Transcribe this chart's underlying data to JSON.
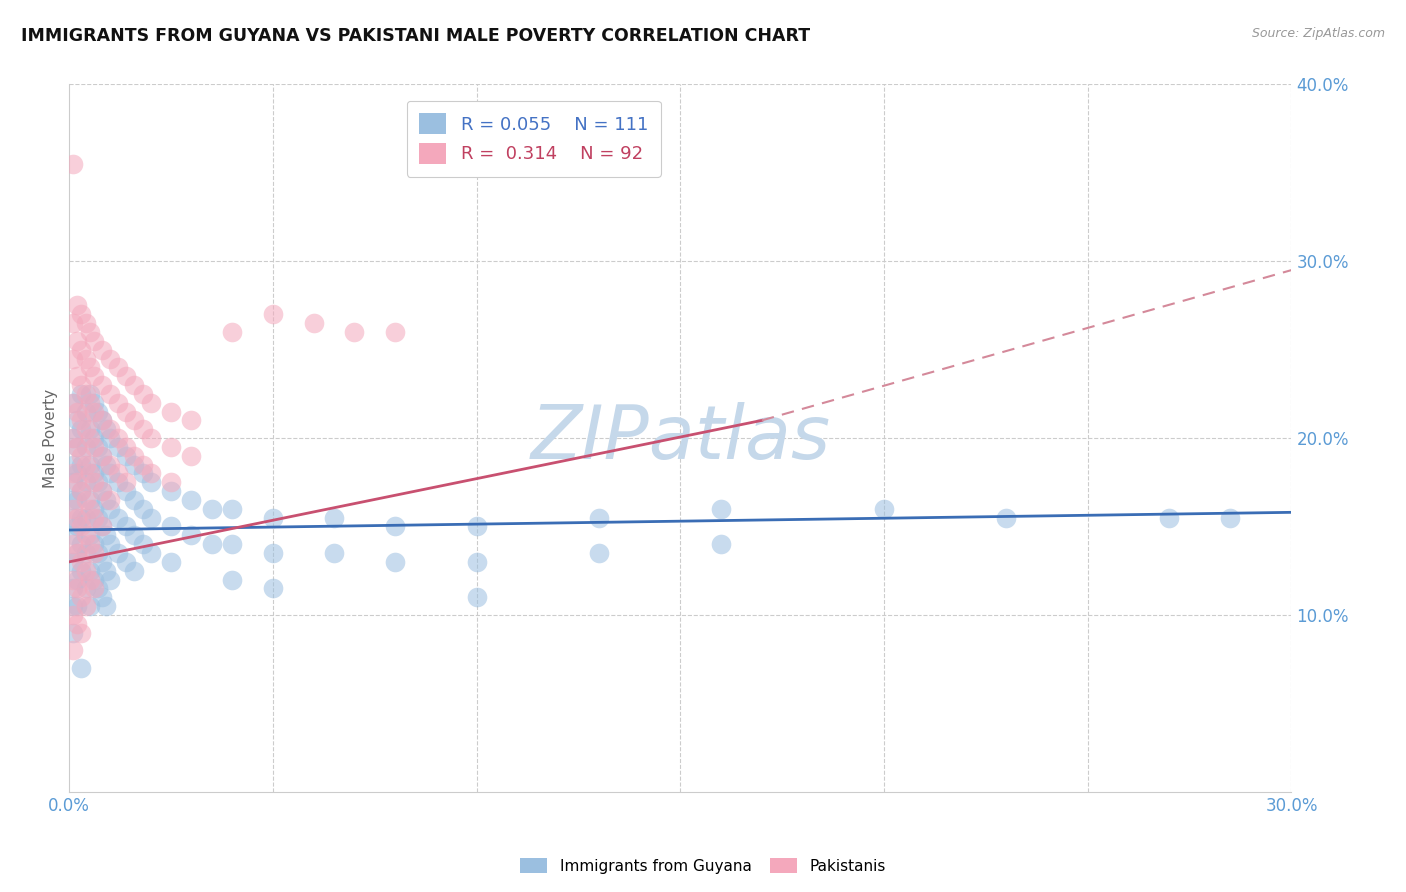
{
  "title": "IMMIGRANTS FROM GUYANA VS PAKISTANI MALE POVERTY CORRELATION CHART",
  "source": "Source: ZipAtlas.com",
  "ylabel": "Male Poverty",
  "xlim": [
    0.0,
    0.3
  ],
  "ylim": [
    0.0,
    0.4
  ],
  "blue_color": "#9BBFE0",
  "pink_color": "#F4A8BC",
  "blue_line_color": "#3A6DB5",
  "pink_line_color": "#C85070",
  "pink_line_dash_color": "#D4899A",
  "watermark": "ZIPatlas",
  "watermark_color": "#C5D8EA",
  "R_blue": 0.055,
  "N_blue": 111,
  "R_pink": 0.314,
  "N_pink": 92,
  "legend_label_blue": "Immigrants from Guyana",
  "legend_label_pink": "Pakistanis",
  "blue_scatter": [
    [
      0.001,
      0.22
    ],
    [
      0.001,
      0.2
    ],
    [
      0.001,
      0.185
    ],
    [
      0.001,
      0.175
    ],
    [
      0.001,
      0.165
    ],
    [
      0.001,
      0.155
    ],
    [
      0.001,
      0.145
    ],
    [
      0.001,
      0.13
    ],
    [
      0.001,
      0.115
    ],
    [
      0.001,
      0.105
    ],
    [
      0.001,
      0.09
    ],
    [
      0.002,
      0.21
    ],
    [
      0.002,
      0.195
    ],
    [
      0.002,
      0.18
    ],
    [
      0.002,
      0.165
    ],
    [
      0.002,
      0.15
    ],
    [
      0.002,
      0.135
    ],
    [
      0.002,
      0.12
    ],
    [
      0.002,
      0.105
    ],
    [
      0.003,
      0.225
    ],
    [
      0.003,
      0.205
    ],
    [
      0.003,
      0.185
    ],
    [
      0.003,
      0.17
    ],
    [
      0.003,
      0.155
    ],
    [
      0.003,
      0.14
    ],
    [
      0.003,
      0.125
    ],
    [
      0.003,
      0.07
    ],
    [
      0.004,
      0.215
    ],
    [
      0.004,
      0.195
    ],
    [
      0.004,
      0.175
    ],
    [
      0.004,
      0.155
    ],
    [
      0.004,
      0.135
    ],
    [
      0.004,
      0.115
    ],
    [
      0.005,
      0.225
    ],
    [
      0.005,
      0.205
    ],
    [
      0.005,
      0.185
    ],
    [
      0.005,
      0.165
    ],
    [
      0.005,
      0.145
    ],
    [
      0.005,
      0.125
    ],
    [
      0.005,
      0.105
    ],
    [
      0.006,
      0.22
    ],
    [
      0.006,
      0.2
    ],
    [
      0.006,
      0.18
    ],
    [
      0.006,
      0.16
    ],
    [
      0.006,
      0.14
    ],
    [
      0.006,
      0.12
    ],
    [
      0.007,
      0.215
    ],
    [
      0.007,
      0.195
    ],
    [
      0.007,
      0.175
    ],
    [
      0.007,
      0.155
    ],
    [
      0.007,
      0.135
    ],
    [
      0.007,
      0.115
    ],
    [
      0.008,
      0.21
    ],
    [
      0.008,
      0.19
    ],
    [
      0.008,
      0.17
    ],
    [
      0.008,
      0.15
    ],
    [
      0.008,
      0.13
    ],
    [
      0.008,
      0.11
    ],
    [
      0.009,
      0.205
    ],
    [
      0.009,
      0.185
    ],
    [
      0.009,
      0.165
    ],
    [
      0.009,
      0.145
    ],
    [
      0.009,
      0.125
    ],
    [
      0.009,
      0.105
    ],
    [
      0.01,
      0.2
    ],
    [
      0.01,
      0.18
    ],
    [
      0.01,
      0.16
    ],
    [
      0.01,
      0.14
    ],
    [
      0.01,
      0.12
    ],
    [
      0.012,
      0.195
    ],
    [
      0.012,
      0.175
    ],
    [
      0.012,
      0.155
    ],
    [
      0.012,
      0.135
    ],
    [
      0.014,
      0.19
    ],
    [
      0.014,
      0.17
    ],
    [
      0.014,
      0.15
    ],
    [
      0.014,
      0.13
    ],
    [
      0.016,
      0.185
    ],
    [
      0.016,
      0.165
    ],
    [
      0.016,
      0.145
    ],
    [
      0.016,
      0.125
    ],
    [
      0.018,
      0.18
    ],
    [
      0.018,
      0.16
    ],
    [
      0.018,
      0.14
    ],
    [
      0.02,
      0.175
    ],
    [
      0.02,
      0.155
    ],
    [
      0.02,
      0.135
    ],
    [
      0.025,
      0.17
    ],
    [
      0.025,
      0.15
    ],
    [
      0.025,
      0.13
    ],
    [
      0.03,
      0.165
    ],
    [
      0.03,
      0.145
    ],
    [
      0.035,
      0.16
    ],
    [
      0.035,
      0.14
    ],
    [
      0.04,
      0.16
    ],
    [
      0.04,
      0.14
    ],
    [
      0.04,
      0.12
    ],
    [
      0.05,
      0.155
    ],
    [
      0.05,
      0.135
    ],
    [
      0.05,
      0.115
    ],
    [
      0.065,
      0.155
    ],
    [
      0.065,
      0.135
    ],
    [
      0.08,
      0.15
    ],
    [
      0.08,
      0.13
    ],
    [
      0.1,
      0.15
    ],
    [
      0.1,
      0.13
    ],
    [
      0.1,
      0.11
    ],
    [
      0.13,
      0.155
    ],
    [
      0.13,
      0.135
    ],
    [
      0.16,
      0.16
    ],
    [
      0.16,
      0.14
    ],
    [
      0.2,
      0.16
    ],
    [
      0.23,
      0.155
    ],
    [
      0.27,
      0.155
    ],
    [
      0.285,
      0.155
    ]
  ],
  "pink_scatter": [
    [
      0.001,
      0.355
    ],
    [
      0.001,
      0.265
    ],
    [
      0.001,
      0.245
    ],
    [
      0.001,
      0.22
    ],
    [
      0.001,
      0.2
    ],
    [
      0.001,
      0.18
    ],
    [
      0.001,
      0.16
    ],
    [
      0.001,
      0.14
    ],
    [
      0.001,
      0.12
    ],
    [
      0.001,
      0.1
    ],
    [
      0.001,
      0.08
    ],
    [
      0.002,
      0.275
    ],
    [
      0.002,
      0.255
    ],
    [
      0.002,
      0.235
    ],
    [
      0.002,
      0.215
    ],
    [
      0.002,
      0.195
    ],
    [
      0.002,
      0.175
    ],
    [
      0.002,
      0.155
    ],
    [
      0.002,
      0.135
    ],
    [
      0.002,
      0.115
    ],
    [
      0.002,
      0.095
    ],
    [
      0.003,
      0.27
    ],
    [
      0.003,
      0.25
    ],
    [
      0.003,
      0.23
    ],
    [
      0.003,
      0.21
    ],
    [
      0.003,
      0.19
    ],
    [
      0.003,
      0.17
    ],
    [
      0.003,
      0.15
    ],
    [
      0.003,
      0.13
    ],
    [
      0.003,
      0.11
    ],
    [
      0.003,
      0.09
    ],
    [
      0.004,
      0.265
    ],
    [
      0.004,
      0.245
    ],
    [
      0.004,
      0.225
    ],
    [
      0.004,
      0.205
    ],
    [
      0.004,
      0.185
    ],
    [
      0.004,
      0.165
    ],
    [
      0.004,
      0.145
    ],
    [
      0.004,
      0.125
    ],
    [
      0.004,
      0.105
    ],
    [
      0.005,
      0.26
    ],
    [
      0.005,
      0.24
    ],
    [
      0.005,
      0.22
    ],
    [
      0.005,
      0.2
    ],
    [
      0.005,
      0.18
    ],
    [
      0.005,
      0.16
    ],
    [
      0.005,
      0.14
    ],
    [
      0.005,
      0.12
    ],
    [
      0.006,
      0.255
    ],
    [
      0.006,
      0.235
    ],
    [
      0.006,
      0.215
    ],
    [
      0.006,
      0.195
    ],
    [
      0.006,
      0.175
    ],
    [
      0.006,
      0.155
    ],
    [
      0.006,
      0.135
    ],
    [
      0.006,
      0.115
    ],
    [
      0.008,
      0.25
    ],
    [
      0.008,
      0.23
    ],
    [
      0.008,
      0.21
    ],
    [
      0.008,
      0.19
    ],
    [
      0.008,
      0.17
    ],
    [
      0.008,
      0.15
    ],
    [
      0.01,
      0.245
    ],
    [
      0.01,
      0.225
    ],
    [
      0.01,
      0.205
    ],
    [
      0.01,
      0.185
    ],
    [
      0.01,
      0.165
    ],
    [
      0.012,
      0.24
    ],
    [
      0.012,
      0.22
    ],
    [
      0.012,
      0.2
    ],
    [
      0.012,
      0.18
    ],
    [
      0.014,
      0.235
    ],
    [
      0.014,
      0.215
    ],
    [
      0.014,
      0.195
    ],
    [
      0.014,
      0.175
    ],
    [
      0.016,
      0.23
    ],
    [
      0.016,
      0.21
    ],
    [
      0.016,
      0.19
    ],
    [
      0.018,
      0.225
    ],
    [
      0.018,
      0.205
    ],
    [
      0.018,
      0.185
    ],
    [
      0.02,
      0.22
    ],
    [
      0.02,
      0.2
    ],
    [
      0.02,
      0.18
    ],
    [
      0.025,
      0.215
    ],
    [
      0.025,
      0.195
    ],
    [
      0.025,
      0.175
    ],
    [
      0.03,
      0.21
    ],
    [
      0.03,
      0.19
    ],
    [
      0.04,
      0.26
    ],
    [
      0.05,
      0.27
    ],
    [
      0.06,
      0.265
    ],
    [
      0.07,
      0.26
    ],
    [
      0.08,
      0.26
    ]
  ],
  "blue_trend": [
    0.0,
    0.3,
    0.148,
    0.158
  ],
  "pink_trend_solid": [
    0.0,
    0.17,
    0.13,
    0.21
  ],
  "pink_trend_dash": [
    0.17,
    0.3,
    0.21,
    0.295
  ]
}
